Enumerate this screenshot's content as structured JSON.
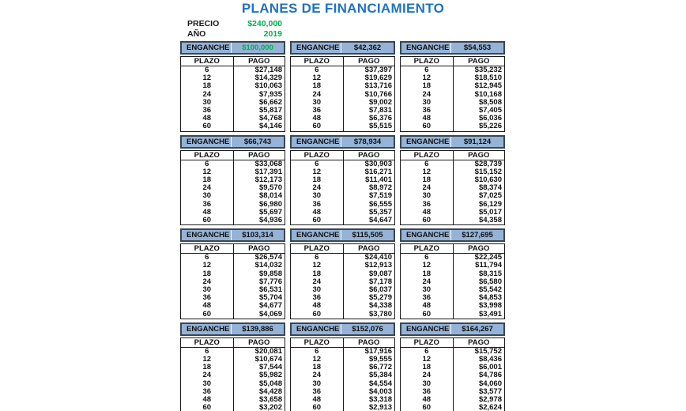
{
  "title": "PLANES DE FINANCIAMIENTO",
  "info": {
    "precio_label": "PRECIO",
    "precio_value": "$240,000",
    "ano_label": "AÑO",
    "ano_value": "2019"
  },
  "labels": {
    "enganche": "ENGANCHE",
    "plazo": "PLAZO",
    "pago": "PAGO"
  },
  "colors": {
    "title": "#1F72C0",
    "green": "#00B050",
    "header_bg": "#95B3D7",
    "header_border": "#3B4653",
    "grid_border": "#1A1A1A"
  },
  "plazos": [
    "6",
    "12",
    "18",
    "24",
    "30",
    "36",
    "48",
    "60"
  ],
  "plans": [
    {
      "enganche": "$100,000",
      "highlight": true,
      "pagos": [
        "$27,148",
        "$14,329",
        "$10,063",
        "$7,935",
        "$6,662",
        "$5,817",
        "$4,768",
        "$4,146"
      ]
    },
    {
      "enganche": "$42,362",
      "highlight": false,
      "pagos": [
        "$37,397",
        "$19,629",
        "$13,716",
        "$10,766",
        "$9,002",
        "$7,831",
        "$6,376",
        "$5,515"
      ]
    },
    {
      "enganche": "$54,553",
      "highlight": false,
      "pagos": [
        "$35,232",
        "$18,510",
        "$12,945",
        "$10,168",
        "$8,508",
        "$7,405",
        "$6,036",
        "$5,226"
      ]
    },
    {
      "enganche": "$66,743",
      "highlight": false,
      "pagos": [
        "$33,068",
        "$17,391",
        "$12,173",
        "$9,570",
        "$8,014",
        "$6,980",
        "$5,697",
        "$4,936"
      ]
    },
    {
      "enganche": "$78,934",
      "highlight": false,
      "pagos": [
        "$30,903",
        "$16,271",
        "$11,401",
        "$8,972",
        "$7,519",
        "$6,555",
        "$5,357",
        "$4,647"
      ]
    },
    {
      "enganche": "$91,124",
      "highlight": false,
      "pagos": [
        "$28,739",
        "$15,152",
        "$10,630",
        "$8,374",
        "$7,025",
        "$6,129",
        "$5,017",
        "$4,358"
      ]
    },
    {
      "enganche": "$103,314",
      "highlight": false,
      "pagos": [
        "$26,574",
        "$14,032",
        "$9,858",
        "$7,776",
        "$6,531",
        "$5,704",
        "$4,677",
        "$4,069"
      ]
    },
    {
      "enganche": "$115,505",
      "highlight": false,
      "pagos": [
        "$24,410",
        "$12,913",
        "$9,087",
        "$7,178",
        "$6,037",
        "$5,279",
        "$4,338",
        "$3,780"
      ]
    },
    {
      "enganche": "$127,695",
      "highlight": false,
      "pagos": [
        "$22,245",
        "$11,794",
        "$8,315",
        "$6,580",
        "$5,542",
        "$4,853",
        "$3,998",
        "$3,491"
      ]
    },
    {
      "enganche": "$139,886",
      "highlight": false,
      "pagos": [
        "$20,081",
        "$10,674",
        "$7,544",
        "$5,982",
        "$5,048",
        "$4,428",
        "$3,658",
        "$3,202"
      ]
    },
    {
      "enganche": "$152,076",
      "highlight": false,
      "pagos": [
        "$17,916",
        "$9,555",
        "$6,772",
        "$5,384",
        "$4,554",
        "$4,003",
        "$3,318",
        "$2,913"
      ]
    },
    {
      "enganche": "$164,267",
      "highlight": false,
      "pagos": [
        "$15,752",
        "$8,436",
        "$6,001",
        "$4,786",
        "$4,060",
        "$3,577",
        "$2,978",
        "$2,624"
      ]
    }
  ]
}
